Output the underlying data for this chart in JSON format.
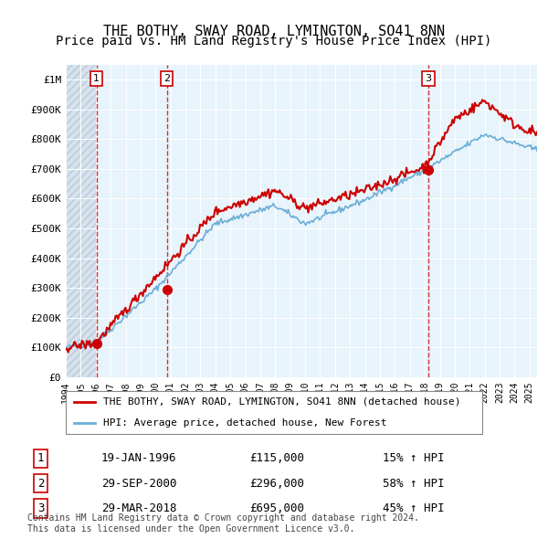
{
  "title": "THE BOTHY, SWAY ROAD, LYMINGTON, SO41 8NN",
  "subtitle": "Price paid vs. HM Land Registry's House Price Index (HPI)",
  "ylabel": "",
  "xlabel": "",
  "ylim": [
    0,
    1050000
  ],
  "xlim_start": 1994.0,
  "xlim_end": 2025.5,
  "sale_dates": [
    1996.05,
    2000.75,
    2018.24
  ],
  "sale_prices": [
    115000,
    296000,
    695000
  ],
  "sale_labels": [
    "1",
    "2",
    "3"
  ],
  "sale_annotations": [
    "19-JAN-1996    £115,000    15% ↑ HPI",
    "29-SEP-2000    £296,000    58% ↑ HPI",
    "29-MAR-2018    £695,000    45% ↑ HPI"
  ],
  "hpi_color": "#6baed6",
  "price_color": "#cc0000",
  "dashed_color": "#cc0000",
  "background_plot": "#e8f4fb",
  "background_hatch": "#dce8f0",
  "grid_color": "#ffffff",
  "legend_label_price": "THE BOTHY, SWAY ROAD, LYMINGTON, SO41 8NN (detached house)",
  "legend_label_hpi": "HPI: Average price, detached house, New Forest",
  "footnote": "Contains HM Land Registry data © Crown copyright and database right 2024.\nThis data is licensed under the Open Government Licence v3.0.",
  "title_fontsize": 11,
  "subtitle_fontsize": 10,
  "ytick_labels": [
    "£0",
    "£100K",
    "£200K",
    "£300K",
    "£400K",
    "£500K",
    "£600K",
    "£700K",
    "£800K",
    "£900K",
    "£1M"
  ],
  "ytick_values": [
    0,
    100000,
    200000,
    300000,
    400000,
    500000,
    600000,
    700000,
    800000,
    900000,
    1000000
  ]
}
